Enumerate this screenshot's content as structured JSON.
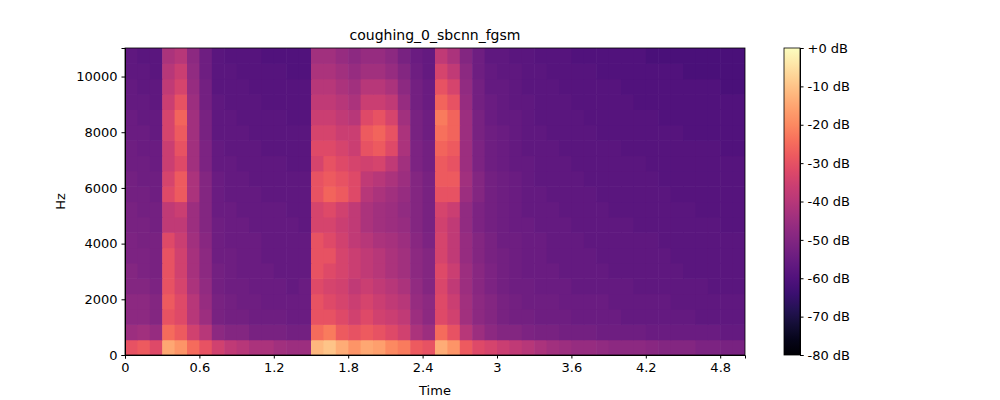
{
  "chart_data": {
    "type": "heatmap",
    "title": "coughing_0_sbcnn_fgsm",
    "x_label": "Time",
    "y_label": "Hz",
    "color": "magma",
    "xlim": [
      0,
      5
    ],
    "ylim": [
      0,
      11025
    ],
    "xticks": [
      0,
      0.6,
      1.2,
      1.8,
      2.4,
      3,
      3.6,
      4.2,
      4.8
    ],
    "yticks": [
      0,
      2000,
      4000,
      6000,
      8000,
      10000
    ],
    "x_bins": [
      0,
      0.1,
      0.2,
      0.3,
      0.4,
      0.5,
      0.6,
      0.7,
      0.8,
      0.9,
      1.0,
      1.1,
      1.2,
      1.3,
      1.4,
      1.5,
      1.6,
      1.7,
      1.8,
      1.9,
      2.0,
      2.1,
      2.2,
      2.3,
      2.4,
      2.5,
      2.6,
      2.7,
      2.8,
      2.9,
      3.0,
      3.1,
      3.2,
      3.3,
      3.4,
      3.5,
      3.6,
      3.7,
      3.8,
      3.9,
      4.0,
      4.1,
      4.2,
      4.3,
      4.4,
      4.5,
      4.6,
      4.7,
      4.8,
      4.9,
      5.0
    ],
    "y_bins": [
      0,
      551.25,
      1102.5,
      1653.75,
      2205,
      2756.25,
      3307.5,
      3858.75,
      4410,
      4961.25,
      5512.5,
      6063.75,
      6615,
      7166.25,
      7717.5,
      8268.75,
      8820,
      9371.25,
      9922.5,
      10473.75,
      11025
    ],
    "z": [
      [
        -30,
        -28,
        -32,
        -15,
        -18,
        -25,
        -30,
        -35,
        -38,
        -40,
        -42,
        -42,
        -44,
        -45,
        -45,
        -12,
        -10,
        -14,
        -18,
        -15,
        -16,
        -20,
        -22,
        -28,
        -30,
        -14,
        -18,
        -28,
        -32,
        -34,
        -36,
        -38,
        -40,
        -42,
        -44,
        -45,
        -46,
        -46,
        -47,
        -48,
        -48,
        -48,
        -49,
        -50,
        -50,
        -50,
        -51,
        -51,
        -52,
        -52
      ],
      [
        -45,
        -44,
        -46,
        -25,
        -28,
        -35,
        -40,
        -48,
        -50,
        -50,
        -52,
        -52,
        -52,
        -53,
        -53,
        -25,
        -22,
        -28,
        -30,
        -28,
        -30,
        -32,
        -35,
        -42,
        -45,
        -25,
        -30,
        -40,
        -45,
        -48,
        -50,
        -50,
        -51,
        -52,
        -52,
        -53,
        -53,
        -53,
        -54,
        -54,
        -54,
        -54,
        -55,
        -55,
        -55,
        -55,
        -55,
        -55,
        -56,
        -56
      ],
      [
        -48,
        -48,
        -50,
        -30,
        -32,
        -40,
        -45,
        -52,
        -53,
        -53,
        -54,
        -54,
        -54,
        -55,
        -55,
        -30,
        -30,
        -32,
        -35,
        -32,
        -35,
        -36,
        -38,
        -45,
        -48,
        -32,
        -35,
        -44,
        -48,
        -50,
        -52,
        -53,
        -53,
        -54,
        -54,
        -54,
        -55,
        -55,
        -55,
        -55,
        -56,
        -56,
        -56,
        -56,
        -56,
        -56,
        -57,
        -57,
        -57,
        -57
      ],
      [
        -48,
        -48,
        -50,
        -28,
        -32,
        -40,
        -46,
        -52,
        -53,
        -54,
        -54,
        -55,
        -55,
        -55,
        -55,
        -30,
        -32,
        -34,
        -36,
        -34,
        -36,
        -38,
        -40,
        -46,
        -48,
        -32,
        -36,
        -44,
        -48,
        -50,
        -52,
        -53,
        -54,
        -54,
        -54,
        -55,
        -55,
        -55,
        -55,
        -56,
        -56,
        -56,
        -56,
        -56,
        -57,
        -57,
        -57,
        -57,
        -57,
        -57
      ],
      [
        -50,
        -50,
        -51,
        -30,
        -34,
        -42,
        -47,
        -53,
        -54,
        -54,
        -55,
        -55,
        -55,
        -56,
        -55,
        -32,
        -34,
        -35,
        -38,
        -36,
        -38,
        -40,
        -42,
        -47,
        -50,
        -33,
        -38,
        -45,
        -49,
        -51,
        -53,
        -54,
        -54,
        -55,
        -55,
        -55,
        -56,
        -56,
        -56,
        -56,
        -56,
        -57,
        -57,
        -57,
        -57,
        -57,
        -57,
        -58,
        -58,
        -58
      ],
      [
        -50,
        -51,
        -52,
        -30,
        -35,
        -43,
        -48,
        -53,
        -54,
        -55,
        -55,
        -55,
        -56,
        -56,
        -56,
        -30,
        -32,
        -34,
        -36,
        -38,
        -40,
        -42,
        -44,
        -48,
        -50,
        -32,
        -36,
        -45,
        -49,
        -51,
        -53,
        -54,
        -55,
        -55,
        -55,
        -56,
        -56,
        -56,
        -56,
        -57,
        -57,
        -57,
        -57,
        -57,
        -57,
        -58,
        -58,
        -58,
        -58,
        -58
      ],
      [
        -51,
        -51,
        -52,
        -30,
        -35,
        -43,
        -48,
        -54,
        -54,
        -55,
        -55,
        -56,
        -56,
        -56,
        -56,
        -30,
        -30,
        -34,
        -36,
        -38,
        -40,
        -42,
        -44,
        -48,
        -50,
        -34,
        -38,
        -46,
        -50,
        -52,
        -53,
        -54,
        -55,
        -55,
        -56,
        -56,
        -56,
        -56,
        -57,
        -57,
        -57,
        -57,
        -57,
        -57,
        -58,
        -58,
        -58,
        -58,
        -58,
        -58
      ],
      [
        -51,
        -52,
        -52,
        -32,
        -36,
        -44,
        -49,
        -54,
        -55,
        -55,
        -55,
        -56,
        -56,
        -56,
        -56,
        -30,
        -32,
        -35,
        -38,
        -40,
        -42,
        -43,
        -45,
        -49,
        -51,
        -34,
        -38,
        -46,
        -50,
        -52,
        -54,
        -54,
        -55,
        -55,
        -56,
        -56,
        -56,
        -57,
        -57,
        -57,
        -57,
        -57,
        -57,
        -58,
        -58,
        -58,
        -58,
        -58,
        -58,
        -58
      ],
      [
        -52,
        -52,
        -53,
        -38,
        -38,
        -45,
        -50,
        -54,
        -55,
        -55,
        -56,
        -56,
        -56,
        -56,
        -57,
        -34,
        -34,
        -36,
        -38,
        -42,
        -44,
        -45,
        -46,
        -50,
        -52,
        -35,
        -38,
        -47,
        -51,
        -53,
        -54,
        -55,
        -55,
        -56,
        -56,
        -56,
        -57,
        -57,
        -57,
        -57,
        -57,
        -58,
        -58,
        -58,
        -58,
        -58,
        -58,
        -58,
        -59,
        -59
      ],
      [
        -52,
        -53,
        -53,
        -38,
        -36,
        -45,
        -50,
        -55,
        -55,
        -56,
        -56,
        -56,
        -56,
        -57,
        -57,
        -34,
        -32,
        -35,
        -38,
        -42,
        -44,
        -45,
        -47,
        -50,
        -52,
        -34,
        -36,
        -47,
        -51,
        -53,
        -54,
        -55,
        -56,
        -56,
        -56,
        -57,
        -57,
        -57,
        -57,
        -58,
        -58,
        -58,
        -58,
        -58,
        -58,
        -58,
        -59,
        -59,
        -59,
        -59
      ],
      [
        -53,
        -53,
        -54,
        -32,
        -28,
        -42,
        -50,
        -55,
        -56,
        -56,
        -56,
        -57,
        -57,
        -57,
        -57,
        -30,
        -26,
        -28,
        -32,
        -40,
        -42,
        -44,
        -46,
        -50,
        -52,
        -30,
        -30,
        -45,
        -50,
        -53,
        -54,
        -55,
        -56,
        -56,
        -57,
        -57,
        -57,
        -57,
        -58,
        -58,
        -58,
        -58,
        -58,
        -58,
        -59,
        -59,
        -59,
        -59,
        -59,
        -59
      ],
      [
        -53,
        -54,
        -54,
        -34,
        -28,
        -42,
        -50,
        -55,
        -56,
        -56,
        -57,
        -57,
        -57,
        -57,
        -57,
        -30,
        -28,
        -30,
        -32,
        -38,
        -40,
        -42,
        -45,
        -50,
        -52,
        -28,
        -28,
        -44,
        -50,
        -53,
        -54,
        -55,
        -56,
        -57,
        -57,
        -57,
        -57,
        -58,
        -58,
        -58,
        -58,
        -58,
        -58,
        -59,
        -59,
        -59,
        -59,
        -59,
        -59,
        -59
      ],
      [
        -54,
        -54,
        -55,
        -36,
        -32,
        -44,
        -51,
        -56,
        -56,
        -57,
        -57,
        -57,
        -57,
        -58,
        -58,
        -34,
        -30,
        -32,
        -34,
        -35,
        -34,
        -38,
        -44,
        -51,
        -53,
        -28,
        -30,
        -45,
        -51,
        -54,
        -55,
        -56,
        -56,
        -57,
        -57,
        -57,
        -58,
        -58,
        -58,
        -58,
        -58,
        -58,
        -59,
        -59,
        -59,
        -59,
        -59,
        -59,
        -59,
        -59
      ],
      [
        -54,
        -55,
        -55,
        -36,
        -30,
        -44,
        -51,
        -56,
        -57,
        -57,
        -57,
        -58,
        -58,
        -58,
        -58,
        -32,
        -32,
        -34,
        -36,
        -30,
        -28,
        -32,
        -42,
        -51,
        -53,
        -26,
        -28,
        -45,
        -51,
        -54,
        -55,
        -56,
        -57,
        -57,
        -57,
        -58,
        -58,
        -58,
        -58,
        -58,
        -59,
        -59,
        -59,
        -59,
        -59,
        -59,
        -59,
        -59,
        -60,
        -60
      ],
      [
        -55,
        -55,
        -56,
        -34,
        -28,
        -44,
        -52,
        -57,
        -57,
        -57,
        -58,
        -58,
        -58,
        -58,
        -58,
        -34,
        -34,
        -36,
        -36,
        -28,
        -26,
        -30,
        -42,
        -52,
        -54,
        -24,
        -26,
        -45,
        -52,
        -54,
        -55,
        -56,
        -57,
        -57,
        -58,
        -58,
        -58,
        -58,
        -59,
        -59,
        -59,
        -59,
        -59,
        -59,
        -59,
        -60,
        -60,
        -60,
        -60,
        -60
      ],
      [
        -55,
        -56,
        -56,
        -34,
        -26,
        -44,
        -52,
        -57,
        -57,
        -58,
        -58,
        -58,
        -58,
        -59,
        -59,
        -36,
        -36,
        -38,
        -40,
        -32,
        -30,
        -34,
        -44,
        -52,
        -54,
        -22,
        -26,
        -45,
        -52,
        -55,
        -56,
        -56,
        -57,
        -58,
        -58,
        -58,
        -58,
        -59,
        -59,
        -59,
        -59,
        -59,
        -59,
        -60,
        -60,
        -60,
        -60,
        -60,
        -60,
        -60
      ],
      [
        -56,
        -56,
        -57,
        -36,
        -30,
        -45,
        -53,
        -57,
        -58,
        -58,
        -58,
        -59,
        -59,
        -59,
        -59,
        -38,
        -38,
        -40,
        -42,
        -36,
        -36,
        -38,
        -46,
        -53,
        -55,
        -26,
        -30,
        -46,
        -53,
        -55,
        -56,
        -57,
        -57,
        -58,
        -58,
        -58,
        -59,
        -59,
        -59,
        -59,
        -59,
        -60,
        -60,
        -60,
        -60,
        -60,
        -60,
        -60,
        -60,
        -60
      ],
      [
        -56,
        -57,
        -57,
        -38,
        -34,
        -46,
        -53,
        -58,
        -58,
        -58,
        -59,
        -59,
        -59,
        -59,
        -59,
        -40,
        -40,
        -42,
        -44,
        -40,
        -40,
        -42,
        -48,
        -53,
        -55,
        -30,
        -34,
        -47,
        -53,
        -56,
        -56,
        -57,
        -58,
        -58,
        -58,
        -59,
        -59,
        -59,
        -59,
        -59,
        -60,
        -60,
        -60,
        -60,
        -60,
        -60,
        -60,
        -60,
        -61,
        -61
      ],
      [
        -57,
        -57,
        -58,
        -40,
        -36,
        -47,
        -54,
        -58,
        -58,
        -59,
        -59,
        -59,
        -59,
        -60,
        -60,
        -42,
        -42,
        -44,
        -46,
        -44,
        -44,
        -46,
        -50,
        -54,
        -56,
        -34,
        -38,
        -48,
        -54,
        -56,
        -57,
        -57,
        -58,
        -58,
        -59,
        -59,
        -59,
        -59,
        -60,
        -60,
        -60,
        -60,
        -60,
        -60,
        -60,
        -61,
        -61,
        -61,
        -61,
        -61
      ],
      [
        -57,
        -58,
        -58,
        -42,
        -40,
        -48,
        -54,
        -58,
        -59,
        -59,
        -59,
        -60,
        -60,
        -60,
        -60,
        -44,
        -44,
        -46,
        -48,
        -46,
        -46,
        -48,
        -52,
        -55,
        -56,
        -38,
        -42,
        -50,
        -54,
        -57,
        -57,
        -58,
        -58,
        -59,
        -59,
        -59,
        -60,
        -60,
        -60,
        -60,
        -60,
        -60,
        -61,
        -61,
        -61,
        -61,
        -61,
        -61,
        -61,
        -61
      ]
    ],
    "colorbar": {
      "range": [
        -80,
        0
      ],
      "ticks": [
        {
          "value": 0,
          "label": "+0 dB"
        },
        {
          "value": -10,
          "label": "-10 dB"
        },
        {
          "value": -20,
          "label": "-20 dB"
        },
        {
          "value": -30,
          "label": "-30 dB"
        },
        {
          "value": -40,
          "label": "-40 dB"
        },
        {
          "value": -50,
          "label": "-50 dB"
        },
        {
          "value": -60,
          "label": "-60 dB"
        },
        {
          "value": -70,
          "label": "-70 dB"
        },
        {
          "value": -80,
          "label": "-80 dB"
        }
      ]
    }
  }
}
